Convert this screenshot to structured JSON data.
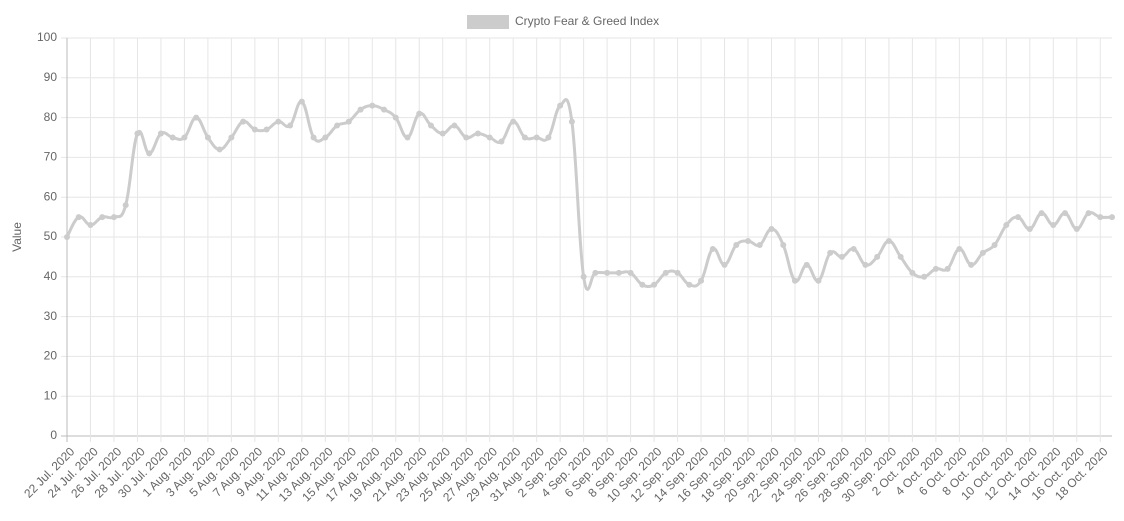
{
  "chart_data": {
    "type": "line",
    "y_label": "Value",
    "categories": [
      "22 Jul. 2020",
      null,
      "24 Jul. 2020",
      null,
      "26 Jul. 2020",
      null,
      "28 Jul. 2020",
      null,
      "30 Jul. 2020",
      null,
      "1 Aug. 2020",
      null,
      "3 Aug. 2020",
      null,
      "5 Aug. 2020",
      null,
      "7 Aug. 2020",
      null,
      "9 Aug. 2020",
      null,
      "11 Aug. 2020",
      null,
      "13 Aug. 2020",
      null,
      "15 Aug. 2020",
      null,
      "17 Aug. 2020",
      null,
      "19 Aug. 2020",
      null,
      "21 Aug. 2020",
      null,
      "23 Aug. 2020",
      null,
      "25 Aug. 2020",
      null,
      "27 Aug. 2020",
      null,
      "29 Aug. 2020",
      null,
      "31 Aug. 2020",
      null,
      "2 Sep. 2020",
      null,
      "4 Sep. 2020",
      null,
      "6 Sep. 2020",
      null,
      "8 Sep. 2020",
      null,
      "10 Sep. 2020",
      null,
      "12 Sep. 2020",
      null,
      "14 Sep. 2020",
      null,
      "16 Sep. 2020",
      null,
      "18 Sep. 2020",
      null,
      "20 Sep. 2020",
      null,
      "22 Sep. 2020",
      null,
      "24 Sep. 2020",
      null,
      "26 Sep. 2020",
      null,
      "28 Sep. 2020",
      null,
      "30 Sep. 2020",
      null,
      "2 Oct. 2020",
      null,
      "4 Oct. 2020",
      null,
      "6 Oct. 2020",
      null,
      "8 Oct. 2020",
      null,
      "10 Oct. 2020",
      null,
      "12 Oct. 2020",
      null,
      "14 Oct. 2020",
      null,
      "16 Oct. 2020",
      null,
      "18 Oct. 2020",
      null
    ],
    "series": [
      {
        "name": "Crypto Fear & Greed Index",
        "color": "#cccccc",
        "values": [
          50,
          55,
          53,
          55,
          55,
          58,
          76,
          71,
          76,
          75,
          75,
          80,
          75,
          72,
          75,
          79,
          77,
          77,
          79,
          78,
          84,
          75,
          75,
          78,
          79,
          82,
          83,
          82,
          80,
          75,
          81,
          78,
          76,
          78,
          75,
          76,
          75,
          74,
          79,
          75,
          75,
          75,
          83,
          79,
          40,
          41,
          41,
          41,
          41,
          38,
          38,
          41,
          41,
          38,
          39,
          47,
          43,
          48,
          49,
          48,
          52,
          48,
          39,
          43,
          39,
          46,
          45,
          47,
          43,
          45,
          49,
          45,
          41,
          40,
          42,
          42,
          47,
          43,
          46,
          48,
          53,
          55,
          52,
          56,
          53,
          56,
          52,
          56,
          55,
          55
        ]
      }
    ],
    "ylim": [
      0,
      100
    ],
    "yticks": [
      0,
      10,
      20,
      30,
      40,
      50,
      60,
      70,
      80,
      90,
      100
    ],
    "grid": true,
    "legend": "top"
  }
}
